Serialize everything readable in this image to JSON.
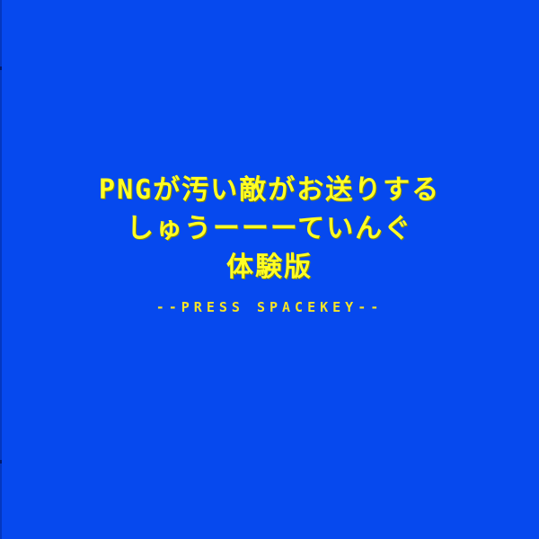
{
  "title": {
    "line1": "PNGが汚い敵がお送りする",
    "line2": "しゅうーーーていんぐ",
    "line3": "体験版"
  },
  "prompt": {
    "text": "--PRESS SPACEKEY--"
  },
  "colors": {
    "background": "#0649ee",
    "text": "#fffe24"
  }
}
